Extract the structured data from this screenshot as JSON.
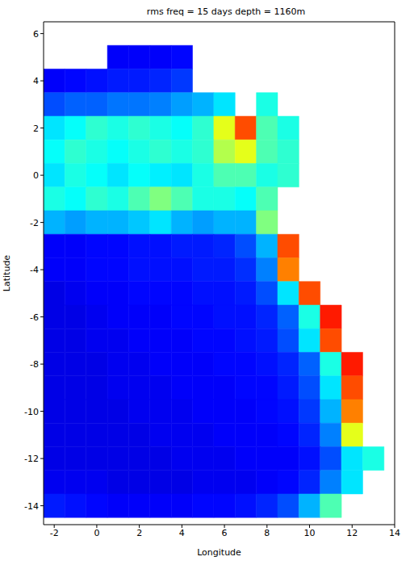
{
  "chart_data": {
    "type": "heatmap",
    "title": "rms  freq = 15 days  depth = 1160m",
    "x_label": "Longitude",
    "y_label": "Latitude",
    "xlim": [
      -2.5,
      14
    ],
    "ylim": [
      -14.8,
      6.5
    ],
    "xticks": [
      -2,
      0,
      2,
      4,
      6,
      8,
      10,
      12,
      14
    ],
    "yticks": [
      -14,
      -12,
      -10,
      -8,
      -6,
      -4,
      -2,
      0,
      2,
      4,
      6
    ],
    "x": [
      -2,
      -1,
      0,
      1,
      2,
      3,
      4,
      5,
      6,
      7,
      8,
      9,
      10,
      11,
      12,
      13
    ],
    "y": [
      6,
      5,
      4,
      3,
      2,
      1,
      0,
      -1,
      -2,
      -3,
      -4,
      -5,
      -6,
      -7,
      -8,
      -9,
      -10,
      -11,
      -12,
      -13,
      -14
    ],
    "color_range": [
      0,
      1
    ],
    "cells": [
      [
        null,
        null,
        null,
        null,
        null,
        null,
        null,
        null,
        null,
        null,
        null,
        null,
        null,
        null,
        null,
        null
      ],
      [
        null,
        null,
        null,
        0.12,
        0.12,
        0.12,
        0.13,
        null,
        null,
        null,
        null,
        null,
        null,
        null,
        null,
        null
      ],
      [
        0.12,
        0.13,
        0.14,
        0.15,
        0.15,
        0.16,
        0.18,
        null,
        null,
        null,
        null,
        null,
        null,
        null,
        null,
        null
      ],
      [
        0.2,
        0.22,
        0.22,
        0.24,
        0.24,
        0.25,
        0.28,
        0.3,
        0.35,
        null,
        0.4,
        null,
        null,
        null,
        null,
        null
      ],
      [
        0.35,
        0.38,
        0.42,
        0.4,
        0.42,
        0.4,
        0.38,
        0.42,
        0.6,
        0.8,
        0.45,
        0.4,
        null,
        null,
        null,
        null
      ],
      [
        0.38,
        0.42,
        0.4,
        0.38,
        0.4,
        0.42,
        0.4,
        0.42,
        0.55,
        0.6,
        0.45,
        0.42,
        null,
        null,
        null,
        null
      ],
      [
        0.35,
        0.4,
        0.38,
        0.35,
        0.38,
        0.36,
        0.35,
        0.4,
        0.45,
        0.45,
        0.4,
        0.42,
        null,
        null,
        null,
        null
      ],
      [
        0.4,
        0.38,
        0.42,
        0.4,
        0.45,
        0.5,
        0.45,
        0.4,
        0.4,
        0.38,
        0.45,
        null,
        null,
        null,
        null,
        null
      ],
      [
        0.3,
        0.28,
        0.3,
        0.3,
        0.32,
        0.35,
        0.3,
        0.28,
        0.3,
        0.3,
        0.5,
        null,
        null,
        null,
        null,
        null
      ],
      [
        0.12,
        0.12,
        0.13,
        0.13,
        0.14,
        0.14,
        0.15,
        0.15,
        0.16,
        0.2,
        0.3,
        0.8,
        null,
        null,
        null,
        null
      ],
      [
        0.12,
        0.12,
        0.13,
        0.13,
        0.14,
        0.14,
        0.14,
        0.15,
        0.15,
        0.17,
        0.25,
        0.75,
        null,
        null,
        null,
        null
      ],
      [
        0.1,
        0.11,
        0.12,
        0.12,
        0.13,
        0.13,
        0.13,
        0.14,
        0.14,
        0.15,
        0.2,
        0.35,
        0.8,
        null,
        null,
        null
      ],
      [
        0.1,
        0.1,
        0.11,
        0.12,
        0.12,
        0.12,
        0.13,
        0.13,
        0.14,
        0.14,
        0.16,
        0.22,
        0.4,
        0.85,
        null,
        null
      ],
      [
        0.1,
        0.1,
        0.11,
        0.11,
        0.12,
        0.12,
        0.12,
        0.13,
        0.13,
        0.14,
        0.15,
        0.2,
        0.35,
        0.8,
        null,
        null
      ],
      [
        0.1,
        0.1,
        0.1,
        0.11,
        0.11,
        0.12,
        0.12,
        0.12,
        0.13,
        0.13,
        0.14,
        0.16,
        0.22,
        0.4,
        0.85,
        null
      ],
      [
        0.1,
        0.1,
        0.1,
        0.11,
        0.11,
        0.11,
        0.12,
        0.12,
        0.12,
        0.13,
        0.13,
        0.15,
        0.2,
        0.35,
        0.8,
        null
      ],
      [
        0.1,
        0.1,
        0.1,
        0.1,
        0.11,
        0.11,
        0.11,
        0.12,
        0.12,
        0.12,
        0.13,
        0.14,
        0.18,
        0.3,
        0.75,
        null
      ],
      [
        0.1,
        0.1,
        0.1,
        0.1,
        0.1,
        0.11,
        0.11,
        0.11,
        0.12,
        0.12,
        0.12,
        0.13,
        0.16,
        0.25,
        0.6,
        null
      ],
      [
        0.1,
        0.1,
        0.1,
        0.1,
        0.1,
        0.1,
        0.11,
        0.11,
        0.11,
        0.12,
        0.12,
        0.12,
        0.14,
        0.2,
        0.35,
        0.4
      ],
      [
        0.11,
        0.11,
        0.11,
        0.1,
        0.1,
        0.1,
        0.1,
        0.11,
        0.11,
        0.11,
        0.12,
        0.13,
        0.16,
        0.25,
        0.35,
        null
      ],
      [
        0.15,
        0.14,
        0.13,
        0.12,
        0.12,
        0.12,
        0.12,
        0.13,
        0.13,
        0.14,
        0.16,
        0.2,
        0.3,
        0.45,
        null,
        null
      ]
    ]
  }
}
